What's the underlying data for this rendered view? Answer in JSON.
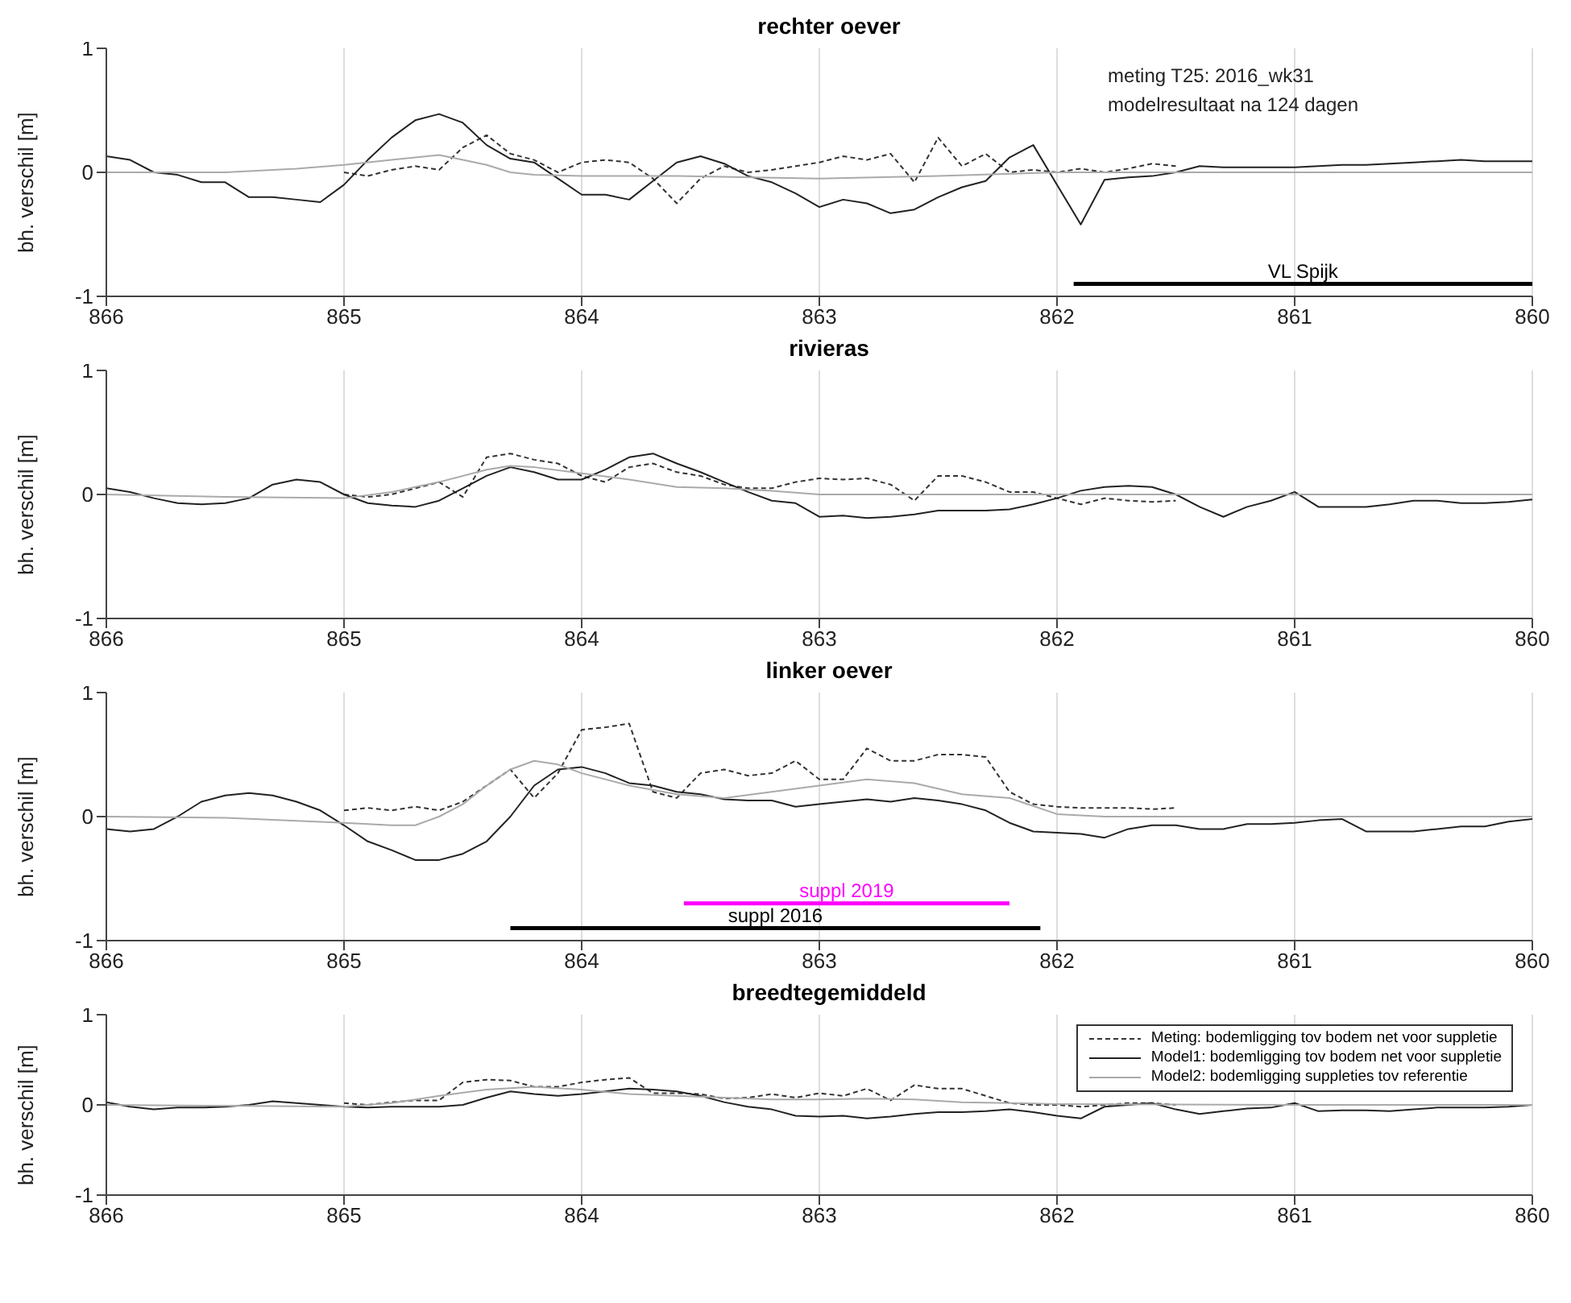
{
  "chart_data": [
    {
      "type": "line",
      "title": "rechter oever",
      "ylabel": "bh. verschil [m]",
      "xlim": [
        866,
        860
      ],
      "xticks": [
        866,
        865,
        864,
        863,
        862,
        861,
        860
      ],
      "ylim": [
        -1,
        1
      ],
      "yticks": [
        -1,
        0,
        1
      ],
      "grid": "x",
      "legend": false,
      "annotations": [
        "meting T25: 2016_wk31",
        "modelresultaat na 124 dagen"
      ],
      "x": [
        866,
        865.9,
        865.8,
        865.7,
        865.6,
        865.5,
        865.4,
        865.3,
        865.2,
        865.1,
        865,
        864.9,
        864.8,
        864.7,
        864.6,
        864.5,
        864.4,
        864.3,
        864.2,
        864.1,
        864,
        863.9,
        863.8,
        863.7,
        863.6,
        863.5,
        863.4,
        863.3,
        863.2,
        863.1,
        863,
        862.9,
        862.8,
        862.7,
        862.6,
        862.5,
        862.4,
        862.3,
        862.2,
        862.1,
        862,
        861.9,
        861.8,
        861.7,
        861.6,
        861.5,
        861.4,
        861.3,
        861.2,
        861.1,
        861,
        860.9,
        860.8,
        860.7,
        860.6,
        860.5,
        860.4,
        860.3,
        860.2,
        860.1,
        860
      ],
      "series": [
        {
          "color": "#333333",
          "line_style": "dashed",
          "x": [
            865,
            864.9,
            864.8,
            864.7,
            864.6,
            864.5,
            864.4,
            864.3,
            864.2,
            864.1,
            864,
            863.9,
            863.8,
            863.7,
            863.6,
            863.5,
            863.4,
            863.3,
            863.2,
            863.1,
            863,
            862.9,
            862.8,
            862.7,
            862.6,
            862.5,
            862.4,
            862.3,
            862.2,
            862.1,
            862,
            861.9,
            861.8,
            861.7,
            861.6,
            861.5
          ],
          "values": [
            0,
            -0.03,
            0.02,
            0.05,
            0.02,
            0.2,
            0.3,
            0.15,
            0.1,
            0,
            0.08,
            0.1,
            0.08,
            -0.05,
            -0.25,
            -0.05,
            0.05,
            0,
            0.02,
            0.05,
            0.08,
            0.13,
            0.1,
            0.15,
            -0.08,
            0.28,
            0.05,
            0.15,
            0,
            0.02,
            0,
            0.03,
            0,
            0.03,
            0.07,
            0.05
          ]
        },
        {
          "color": "#222222",
          "values": [
            0.13,
            0.1,
            0,
            -0.02,
            -0.08,
            -0.08,
            -0.2,
            -0.2,
            -0.22,
            -0.24,
            -0.1,
            0.1,
            0.28,
            0.42,
            0.47,
            0.4,
            0.22,
            0.11,
            0.08,
            -0.05,
            -0.18,
            -0.18,
            -0.22,
            -0.07,
            0.08,
            0.13,
            0.07,
            -0.03,
            -0.08,
            -0.17,
            -0.28,
            -0.22,
            -0.25,
            -0.33,
            -0.3,
            -0.2,
            -0.12,
            -0.07,
            0.12,
            0.22,
            -0.1,
            -0.42,
            -0.06,
            -0.04,
            -0.03,
            0,
            0.05,
            0.04,
            0.04,
            0.04,
            0.04,
            0.05,
            0.06,
            0.06,
            0.07,
            0.08,
            0.09,
            0.1,
            0.09,
            0.09,
            0.09
          ]
        },
        {
          "color": "#aaaaaa",
          "x": [
            866,
            865.5,
            865.4,
            865.2,
            865,
            864.8,
            864.6,
            864.5,
            864.4,
            864.3,
            864.2,
            864,
            863.6,
            863,
            862.5,
            862,
            861,
            860
          ],
          "values": [
            0,
            0,
            0.01,
            0.03,
            0.06,
            0.1,
            0.14,
            0.1,
            0.06,
            0,
            -0.02,
            -0.03,
            -0.03,
            -0.05,
            -0.03,
            0,
            0,
            0
          ]
        },
        {
          "name": "VL Spijk",
          "color": "#000000",
          "x": [
            861.93,
            860
          ],
          "values": [
            -0.9,
            -0.9
          ]
        }
      ]
    },
    {
      "type": "line",
      "title": "rivieras",
      "ylabel": "bh. verschil [m]",
      "xlim": [
        866,
        860
      ],
      "xticks": [
        866,
        865,
        864,
        863,
        862,
        861,
        860
      ],
      "ylim": [
        -1,
        1
      ],
      "yticks": [
        -1,
        0,
        1
      ],
      "grid": "x",
      "legend": false,
      "x": [
        866,
        865.9,
        865.8,
        865.7,
        865.6,
        865.5,
        865.4,
        865.3,
        865.2,
        865.1,
        865,
        864.9,
        864.8,
        864.7,
        864.6,
        864.5,
        864.4,
        864.3,
        864.2,
        864.1,
        864,
        863.9,
        863.8,
        863.7,
        863.6,
        863.5,
        863.4,
        863.3,
        863.2,
        863.1,
        863,
        862.9,
        862.8,
        862.7,
        862.6,
        862.5,
        862.4,
        862.3,
        862.2,
        862.1,
        862,
        861.9,
        861.8,
        861.7,
        861.6,
        861.5,
        861.4,
        861.3,
        861.2,
        861.1,
        861,
        860.9,
        860.8,
        860.7,
        860.6,
        860.5,
        860.4,
        860.3,
        860.2,
        860.1,
        860
      ],
      "series": [
        {
          "color": "#333333",
          "line_style": "dashed",
          "x": [
            865,
            864.9,
            864.8,
            864.7,
            864.6,
            864.5,
            864.4,
            864.3,
            864.2,
            864.1,
            864,
            863.9,
            863.8,
            863.7,
            863.6,
            863.5,
            863.4,
            863.3,
            863.2,
            863.1,
            863,
            862.9,
            862.8,
            862.7,
            862.6,
            862.5,
            862.4,
            862.3,
            862.2,
            862.1,
            862,
            861.9,
            861.8,
            861.7,
            861.6,
            861.5
          ],
          "values": [
            0,
            -0.02,
            0,
            0.05,
            0.1,
            -0.02,
            0.3,
            0.33,
            0.28,
            0.25,
            0.15,
            0.1,
            0.22,
            0.25,
            0.18,
            0.15,
            0.08,
            0.05,
            0.05,
            0.1,
            0.13,
            0.12,
            0.13,
            0.08,
            -0.05,
            0.15,
            0.15,
            0.1,
            0.02,
            0.02,
            -0.03,
            -0.08,
            -0.03,
            -0.05,
            -0.06,
            -0.05
          ]
        },
        {
          "color": "#222222",
          "values": [
            0.05,
            0.02,
            -0.03,
            -0.07,
            -0.08,
            -0.07,
            -0.03,
            0.08,
            0.12,
            0.1,
            0,
            -0.07,
            -0.09,
            -0.1,
            -0.05,
            0.05,
            0.15,
            0.22,
            0.18,
            0.12,
            0.12,
            0.2,
            0.3,
            0.33,
            0.25,
            0.18,
            0.1,
            0.02,
            -0.05,
            -0.07,
            -0.18,
            -0.17,
            -0.19,
            -0.18,
            -0.16,
            -0.13,
            -0.13,
            -0.13,
            -0.12,
            -0.08,
            -0.03,
            0.03,
            0.06,
            0.07,
            0.06,
            0,
            -0.1,
            -0.18,
            -0.1,
            -0.05,
            0.02,
            -0.1,
            -0.1,
            -0.1,
            -0.08,
            -0.05,
            -0.05,
            -0.07,
            -0.07,
            -0.06,
            -0.04
          ]
        },
        {
          "color": "#aaaaaa",
          "x": [
            866,
            865.5,
            865,
            864.8,
            864.6,
            864.4,
            864.3,
            864.2,
            864,
            863.8,
            863.6,
            863.4,
            863.2,
            863,
            862,
            861,
            860
          ],
          "values": [
            0,
            -0.02,
            -0.03,
            0.02,
            0.1,
            0.2,
            0.23,
            0.22,
            0.17,
            0.12,
            0.06,
            0.05,
            0.03,
            0,
            0,
            0,
            0
          ]
        }
      ]
    },
    {
      "type": "line",
      "title": "linker oever",
      "ylabel": "bh. verschil [m]",
      "xlim": [
        866,
        860
      ],
      "xticks": [
        866,
        865,
        864,
        863,
        862,
        861,
        860
      ],
      "ylim": [
        -1,
        1
      ],
      "yticks": [
        -1,
        0,
        1
      ],
      "grid": "x",
      "legend": false,
      "x": [
        866,
        865.9,
        865.8,
        865.7,
        865.6,
        865.5,
        865.4,
        865.3,
        865.2,
        865.1,
        865,
        864.9,
        864.8,
        864.7,
        864.6,
        864.5,
        864.4,
        864.3,
        864.2,
        864.1,
        864,
        863.9,
        863.8,
        863.7,
        863.6,
        863.5,
        863.4,
        863.3,
        863.2,
        863.1,
        863,
        862.9,
        862.8,
        862.7,
        862.6,
        862.5,
        862.4,
        862.3,
        862.2,
        862.1,
        862,
        861.9,
        861.8,
        861.7,
        861.6,
        861.5,
        861.4,
        861.3,
        861.2,
        861.1,
        861,
        860.9,
        860.8,
        860.7,
        860.6,
        860.5,
        860.4,
        860.3,
        860.2,
        860.1,
        860
      ],
      "series": [
        {
          "color": "#333333",
          "line_style": "dashed",
          "x": [
            865,
            864.9,
            864.8,
            864.7,
            864.6,
            864.5,
            864.4,
            864.3,
            864.2,
            864.1,
            864,
            863.9,
            863.8,
            863.7,
            863.6,
            863.5,
            863.4,
            863.3,
            863.2,
            863.1,
            863,
            862.9,
            862.8,
            862.7,
            862.6,
            862.5,
            862.4,
            862.3,
            862.2,
            862.1,
            862,
            861.9,
            861.8,
            861.7,
            861.6,
            861.5
          ],
          "values": [
            0.05,
            0.07,
            0.05,
            0.08,
            0.05,
            0.12,
            0.25,
            0.38,
            0.15,
            0.35,
            0.7,
            0.72,
            0.75,
            0.2,
            0.15,
            0.35,
            0.38,
            0.33,
            0.35,
            0.45,
            0.3,
            0.3,
            0.55,
            0.45,
            0.45,
            0.5,
            0.5,
            0.48,
            0.2,
            0.1,
            0.08,
            0.07,
            0.07,
            0.07,
            0.06,
            0.07
          ]
        },
        {
          "color": "#222222",
          "values": [
            -0.1,
            -0.12,
            -0.1,
            0,
            0.12,
            0.17,
            0.19,
            0.17,
            0.12,
            0.05,
            -0.07,
            -0.2,
            -0.27,
            -0.35,
            -0.35,
            -0.3,
            -0.2,
            0,
            0.25,
            0.38,
            0.4,
            0.35,
            0.27,
            0.25,
            0.2,
            0.18,
            0.14,
            0.13,
            0.13,
            0.08,
            0.1,
            0.12,
            0.14,
            0.12,
            0.15,
            0.13,
            0.1,
            0.05,
            -0.05,
            -0.12,
            -0.13,
            -0.14,
            -0.17,
            -0.1,
            -0.07,
            -0.07,
            -0.1,
            -0.1,
            -0.06,
            -0.06,
            -0.05,
            -0.03,
            -0.02,
            -0.12,
            -0.12,
            -0.12,
            -0.1,
            -0.08,
            -0.08,
            -0.04,
            -0.02
          ]
        },
        {
          "color": "#aaaaaa",
          "x": [
            866,
            865.5,
            865,
            864.8,
            864.7,
            864.6,
            864.5,
            864.4,
            864.3,
            864.2,
            864.1,
            864,
            863.8,
            863.6,
            863.4,
            863.2,
            863,
            862.8,
            862.6,
            862.4,
            862.2,
            862,
            861.8,
            861,
            860
          ],
          "values": [
            0,
            -0.01,
            -0.05,
            -0.07,
            -0.07,
            0,
            0.1,
            0.25,
            0.38,
            0.45,
            0.42,
            0.35,
            0.25,
            0.18,
            0.15,
            0.2,
            0.25,
            0.3,
            0.27,
            0.18,
            0.15,
            0.02,
            0,
            0,
            0
          ]
        },
        {
          "name": "suppl 2019",
          "color": "#ff00ff",
          "x": [
            863.57,
            862.2
          ],
          "values": [
            -0.7,
            -0.7
          ]
        },
        {
          "name": "suppl 2016",
          "color": "#000000",
          "x": [
            864.3,
            862.07
          ],
          "values": [
            -0.9,
            -0.9
          ]
        }
      ]
    },
    {
      "type": "line",
      "title": "breedtegemiddeld",
      "ylabel": "bh. verschil [m]",
      "xlim": [
        866,
        860
      ],
      "xticks": [
        866,
        865,
        864,
        863,
        862,
        861,
        860
      ],
      "ylim": [
        -1,
        1
      ],
      "yticks": [
        -1,
        0,
        1
      ],
      "grid": "x",
      "legend": "top right",
      "x": [
        866,
        865.9,
        865.8,
        865.7,
        865.6,
        865.5,
        865.4,
        865.3,
        865.2,
        865.1,
        865,
        864.9,
        864.8,
        864.7,
        864.6,
        864.5,
        864.4,
        864.3,
        864.2,
        864.1,
        864,
        863.9,
        863.8,
        863.7,
        863.6,
        863.5,
        863.4,
        863.3,
        863.2,
        863.1,
        863,
        862.9,
        862.8,
        862.7,
        862.6,
        862.5,
        862.4,
        862.3,
        862.2,
        862.1,
        862,
        861.9,
        861.8,
        861.7,
        861.6,
        861.5,
        861.4,
        861.3,
        861.2,
        861.1,
        861,
        860.9,
        860.8,
        860.7,
        860.6,
        860.5,
        860.4,
        860.3,
        860.2,
        860.1,
        860
      ],
      "series": [
        {
          "name": "Meting: bodemligging tov bodem net voor suppletie",
          "color": "#333333",
          "line_style": "dashed",
          "x": [
            865,
            864.9,
            864.8,
            864.7,
            864.6,
            864.5,
            864.4,
            864.3,
            864.2,
            864.1,
            864,
            863.9,
            863.8,
            863.7,
            863.6,
            863.5,
            863.4,
            863.3,
            863.2,
            863.1,
            863,
            862.9,
            862.8,
            862.7,
            862.6,
            862.5,
            862.4,
            862.3,
            862.2,
            862.1,
            862,
            861.9,
            861.8,
            861.7,
            861.6,
            861.5
          ],
          "values": [
            0.02,
            0,
            0.03,
            0.05,
            0.05,
            0.25,
            0.28,
            0.27,
            0.2,
            0.2,
            0.25,
            0.28,
            0.3,
            0.13,
            0.13,
            0.12,
            0.07,
            0.08,
            0.12,
            0.08,
            0.13,
            0.1,
            0.18,
            0.05,
            0.22,
            0.18,
            0.18,
            0.1,
            0.02,
            0,
            0,
            -0.02,
            0,
            0.02,
            0.02,
            0
          ]
        },
        {
          "name": "Model1: bodemligging tov bodem net voor suppletie",
          "color": "#222222",
          "values": [
            0.03,
            -0.02,
            -0.05,
            -0.03,
            -0.03,
            -0.02,
            0,
            0.04,
            0.02,
            0,
            -0.02,
            -0.03,
            -0.02,
            -0.02,
            -0.02,
            0,
            0.08,
            0.15,
            0.12,
            0.1,
            0.12,
            0.15,
            0.18,
            0.17,
            0.15,
            0.1,
            0.03,
            -0.02,
            -0.05,
            -0.12,
            -0.13,
            -0.12,
            -0.15,
            -0.13,
            -0.1,
            -0.08,
            -0.08,
            -0.07,
            -0.05,
            -0.08,
            -0.12,
            -0.15,
            -0.02,
            0,
            0.02,
            -0.05,
            -0.1,
            -0.07,
            -0.04,
            -0.03,
            0.02,
            -0.07,
            -0.06,
            -0.06,
            -0.07,
            -0.05,
            -0.03,
            -0.03,
            -0.03,
            -0.02,
            0
          ]
        },
        {
          "name": "Model2: bodemligging suppleties tov referentie",
          "color": "#aaaaaa",
          "x": [
            866,
            865.5,
            865,
            864.8,
            864.6,
            864.4,
            864.2,
            864,
            863.8,
            863.6,
            863.4,
            863.2,
            863,
            862.8,
            862.6,
            862.4,
            862.2,
            862,
            861,
            860
          ],
          "values": [
            0,
            -0.01,
            -0.02,
            0.02,
            0.1,
            0.17,
            0.2,
            0.17,
            0.12,
            0.1,
            0.08,
            0.06,
            0.06,
            0.07,
            0.06,
            0.03,
            0.02,
            0.01,
            0,
            0
          ]
        }
      ]
    }
  ]
}
